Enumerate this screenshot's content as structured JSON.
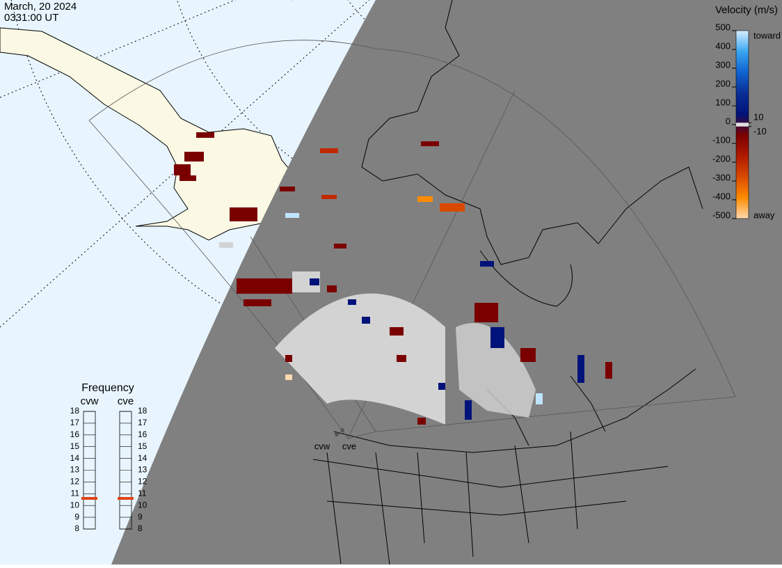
{
  "header": {
    "date": "March, 20 2024",
    "time": "0331:00 UT"
  },
  "velocity_scale": {
    "title": "Velocity (m/s)",
    "ticks": [
      500,
      400,
      300,
      200,
      100,
      0,
      -100,
      -200,
      -300,
      -400,
      -500
    ],
    "inner_labels": [
      10,
      -10
    ],
    "toward": "toward",
    "away": "away",
    "colors": [
      "#d6eeff",
      "#3aa6f0",
      "#0f62d0",
      "#0a2f96",
      "#00137a",
      "#7a0000",
      "#b01a00",
      "#d94a00",
      "#ff8c00",
      "#ffd9b0"
    ],
    "zero_color": "#e0e0e0"
  },
  "frequency": {
    "title": "Frequency",
    "ticks": [
      8,
      9,
      10,
      11,
      12,
      13,
      14,
      15,
      16,
      17,
      18
    ],
    "radars": [
      {
        "name": "cvw",
        "value": 10.6
      },
      {
        "name": "cve",
        "value": 10.6
      }
    ],
    "marker_color": "#e04418"
  },
  "map_labels": [
    "cvw",
    "cve"
  ]
}
